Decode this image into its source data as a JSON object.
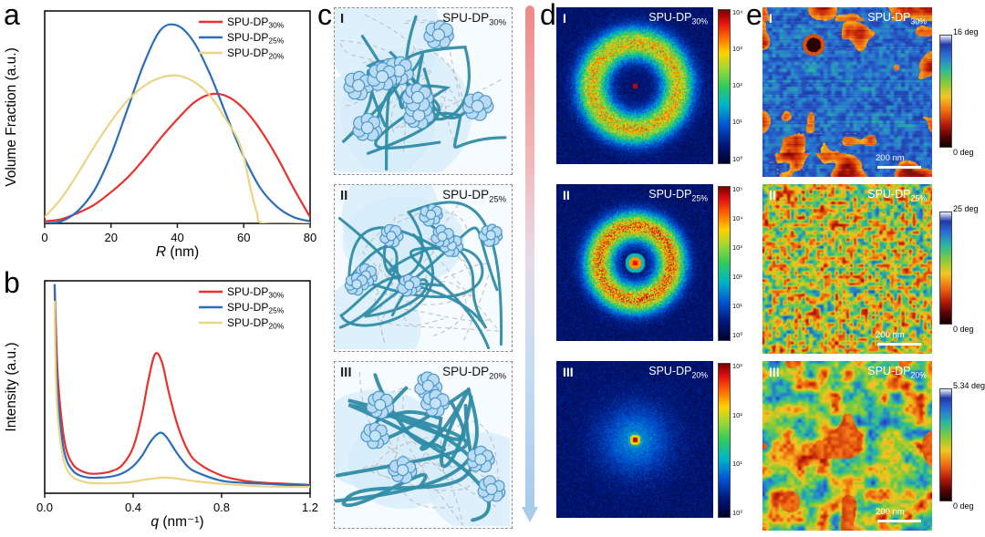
{
  "figure": {
    "letters": {
      "a": "a",
      "b": "b",
      "c": "c",
      "d": "d",
      "e": "e"
    }
  },
  "chart_data": [
    {
      "id": "a",
      "type": "line",
      "xlabel_italic": "R",
      "xlabel_rest": " (nm)",
      "ylabel": "Volume Fraction (a.u.)",
      "xlim": [
        0,
        80
      ],
      "ylim": [
        0,
        1.02
      ],
      "grid": false,
      "legend_position": "top-right",
      "xticks": [
        {
          "v": 0,
          "l": "0"
        },
        {
          "v": 20,
          "l": "20"
        },
        {
          "v": 40,
          "l": "40"
        },
        {
          "v": 60,
          "l": "60"
        },
        {
          "v": 80,
          "l": "80"
        }
      ],
      "series": [
        {
          "name": "SPU-DP",
          "sub": "30%",
          "color": "#e8322e",
          "x": [
            0,
            5,
            10,
            15,
            20,
            25,
            30,
            35,
            40,
            45,
            50,
            55,
            60,
            65,
            70,
            75,
            80
          ],
          "y": [
            0.01,
            0.02,
            0.05,
            0.09,
            0.15,
            0.22,
            0.31,
            0.41,
            0.5,
            0.58,
            0.62,
            0.61,
            0.55,
            0.45,
            0.32,
            0.17,
            0.03
          ]
        },
        {
          "name": "SPU-DP",
          "sub": "25%",
          "color": "#2a6db8",
          "x": [
            0,
            5,
            10,
            15,
            20,
            25,
            30,
            35,
            40,
            45,
            50,
            55,
            60,
            65,
            70,
            75,
            80
          ],
          "y": [
            0.0,
            0.01,
            0.06,
            0.16,
            0.33,
            0.55,
            0.77,
            0.93,
            0.95,
            0.87,
            0.71,
            0.51,
            0.32,
            0.17,
            0.08,
            0.03,
            0.01
          ]
        },
        {
          "name": "SPU-DP",
          "sub": "20%",
          "color": "#ead584",
          "x": [
            0,
            5,
            10,
            15,
            20,
            25,
            30,
            35,
            40,
            45,
            50,
            55,
            58,
            60,
            62,
            64,
            66,
            80
          ],
          "y": [
            0.03,
            0.12,
            0.24,
            0.37,
            0.49,
            0.59,
            0.66,
            0.7,
            0.71,
            0.68,
            0.61,
            0.49,
            0.41,
            0.32,
            0.17,
            0.05,
            0.0,
            0.0
          ]
        }
      ]
    },
    {
      "id": "b",
      "type": "line",
      "xlabel_italic": "q",
      "xlabel_rest": " (nm⁻¹)",
      "ylabel": "Intensity (a.u.)",
      "xlim": [
        0,
        1.2
      ],
      "ylim": [
        0,
        1.02
      ],
      "grid": false,
      "legend_position": "top-right",
      "xticks": [
        {
          "v": 0,
          "l": "0.0"
        },
        {
          "v": 0.4,
          "l": "0.4"
        },
        {
          "v": 0.8,
          "l": "0.8"
        },
        {
          "v": 1.2,
          "l": "1.2"
        }
      ],
      "series": [
        {
          "name": "SPU-DP",
          "sub": "30%",
          "color": "#e8322e",
          "x": [
            0.045,
            0.05,
            0.06,
            0.08,
            0.1,
            0.13,
            0.16,
            0.2,
            0.25,
            0.3,
            0.35,
            0.4,
            0.44,
            0.47,
            0.5,
            0.53,
            0.56,
            0.6,
            0.65,
            0.7,
            0.8,
            0.9,
            1.0,
            1.1,
            1.2
          ],
          "y": [
            1.0,
            0.82,
            0.55,
            0.32,
            0.2,
            0.135,
            0.11,
            0.095,
            0.095,
            0.105,
            0.135,
            0.22,
            0.38,
            0.55,
            0.67,
            0.63,
            0.49,
            0.33,
            0.2,
            0.14,
            0.085,
            0.06,
            0.05,
            0.045,
            0.04
          ]
        },
        {
          "name": "SPU-DP",
          "sub": "25%",
          "color": "#2a6db8",
          "x": [
            0.045,
            0.05,
            0.06,
            0.08,
            0.1,
            0.13,
            0.16,
            0.2,
            0.25,
            0.3,
            0.35,
            0.4,
            0.44,
            0.48,
            0.52,
            0.55,
            0.6,
            0.65,
            0.7,
            0.8,
            0.9,
            1.0,
            1.1,
            1.2
          ],
          "y": [
            1.0,
            0.7,
            0.46,
            0.25,
            0.155,
            0.105,
            0.085,
            0.075,
            0.075,
            0.08,
            0.095,
            0.13,
            0.18,
            0.25,
            0.29,
            0.27,
            0.19,
            0.125,
            0.095,
            0.06,
            0.05,
            0.045,
            0.04,
            0.038
          ]
        },
        {
          "name": "SPU-DP",
          "sub": "20%",
          "color": "#ead584",
          "x": [
            0.045,
            0.05,
            0.06,
            0.08,
            0.1,
            0.13,
            0.16,
            0.2,
            0.25,
            0.3,
            0.35,
            0.4,
            0.45,
            0.5,
            0.55,
            0.6,
            0.65,
            0.7,
            0.8,
            0.9,
            1.0,
            1.1,
            1.2
          ],
          "y": [
            0.92,
            0.58,
            0.36,
            0.19,
            0.115,
            0.075,
            0.06,
            0.05,
            0.048,
            0.048,
            0.05,
            0.055,
            0.065,
            0.072,
            0.075,
            0.07,
            0.062,
            0.055,
            0.045,
            0.038,
            0.032,
            0.03,
            0.03
          ]
        }
      ]
    }
  ],
  "panel_c": {
    "items": [
      {
        "numeral": "I",
        "label": "SPU-DP",
        "sub": "30%"
      },
      {
        "numeral": "II",
        "label": "SPU-DP",
        "sub": "25%"
      },
      {
        "numeral": "III",
        "label": "SPU-DP",
        "sub": "20%"
      }
    ]
  },
  "panel_d": {
    "items": [
      {
        "numeral": "I",
        "label": "SPU-DP",
        "sub": "30%",
        "colorbar_ticks": [
          "10⁴",
          "10³",
          "10²",
          "10¹",
          "10⁰"
        ]
      },
      {
        "numeral": "II",
        "label": "SPU-DP",
        "sub": "25%",
        "colorbar_ticks": [
          "10⁵",
          "10⁴",
          "10³",
          "10²",
          "10¹",
          "10⁰"
        ]
      },
      {
        "numeral": "III",
        "label": "SPU-DP",
        "sub": "20%",
        "colorbar_ticks": [
          "10³",
          "10²",
          "10¹",
          "10⁰"
        ]
      }
    ]
  },
  "panel_e": {
    "items": [
      {
        "numeral": "I",
        "label": "SPU-DP",
        "sub": "30%",
        "cb_top": "16 deg",
        "cb_bottom": "0 deg",
        "scalebar": "200 nm"
      },
      {
        "numeral": "II",
        "label": "SPU-DP",
        "sub": "25%",
        "cb_top": "25 deg",
        "cb_bottom": "0 deg",
        "scalebar": "200 nm"
      },
      {
        "numeral": "III",
        "label": "SPU-DP",
        "sub": "20%",
        "cb_top": "5.34 deg",
        "cb_bottom": "0 deg",
        "scalebar": "200 nm"
      }
    ]
  }
}
